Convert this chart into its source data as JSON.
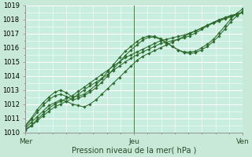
{
  "xlabel": "Pression niveau de la mer( hPa )",
  "bg_color": "#c8e8d8",
  "plot_bg_color": "#c8eee0",
  "grid_major_color": "#ffffff",
  "grid_minor_color": "#ddf5ec",
  "line_color": "#2d6b2d",
  "marker_color": "#2d6b2d",
  "ylim": [
    1010,
    1019
  ],
  "xlim": [
    0,
    48
  ],
  "yticks": [
    1010,
    1011,
    1012,
    1013,
    1014,
    1015,
    1016,
    1017,
    1018,
    1019
  ],
  "xtick_labels": [
    "Mer",
    "Jeu",
    "Ven"
  ],
  "xtick_positions": [
    0,
    24,
    48
  ],
  "vline_positions": [
    24,
    48
  ],
  "series": [
    [
      1010.3,
      1010.7,
      1011.1,
      1011.5,
      1011.9,
      1012.1,
      1012.3,
      1012.2,
      1012.0,
      1011.9,
      1011.8,
      1012.0,
      1012.3,
      1012.7,
      1013.1,
      1013.5,
      1013.9,
      1014.3,
      1014.7,
      1015.1,
      1015.4,
      1015.6,
      1015.8,
      1016.0,
      1016.2,
      1016.4,
      1016.6,
      1016.8,
      1017.0,
      1017.2,
      1017.4,
      1017.6,
      1017.8,
      1018.0,
      1018.15,
      1018.3,
      1018.4,
      1018.5
    ],
    [
      1010.2,
      1010.5,
      1010.9,
      1011.3,
      1011.7,
      1012.0,
      1012.2,
      1012.4,
      1012.6,
      1012.9,
      1013.2,
      1013.5,
      1013.8,
      1014.1,
      1014.4,
      1014.7,
      1015.0,
      1015.3,
      1015.5,
      1015.7,
      1015.9,
      1016.1,
      1016.3,
      1016.5,
      1016.6,
      1016.7,
      1016.8,
      1016.9,
      1017.05,
      1017.2,
      1017.4,
      1017.6,
      1017.8,
      1017.95,
      1018.1,
      1018.25,
      1018.38,
      1018.5
    ],
    [
      1010.15,
      1010.45,
      1010.8,
      1011.15,
      1011.5,
      1011.8,
      1012.0,
      1012.2,
      1012.4,
      1012.7,
      1013.0,
      1013.3,
      1013.55,
      1013.8,
      1014.1,
      1014.4,
      1014.7,
      1015.0,
      1015.25,
      1015.5,
      1015.7,
      1015.9,
      1016.1,
      1016.3,
      1016.4,
      1016.5,
      1016.6,
      1016.7,
      1016.85,
      1017.05,
      1017.3,
      1017.55,
      1017.75,
      1017.9,
      1018.05,
      1018.2,
      1018.35,
      1018.5
    ],
    [
      1010.4,
      1010.9,
      1011.4,
      1011.9,
      1012.3,
      1012.6,
      1012.7,
      1012.55,
      1012.3,
      1012.4,
      1012.6,
      1012.85,
      1013.15,
      1013.55,
      1014.0,
      1014.5,
      1015.0,
      1015.45,
      1015.85,
      1016.2,
      1016.55,
      1016.75,
      1016.75,
      1016.6,
      1016.35,
      1016.1,
      1015.85,
      1015.65,
      1015.6,
      1015.65,
      1015.85,
      1016.1,
      1016.45,
      1016.85,
      1017.35,
      1017.85,
      1018.25,
      1018.6
    ],
    [
      1010.5,
      1011.0,
      1011.6,
      1012.1,
      1012.5,
      1012.85,
      1013.0,
      1012.8,
      1012.5,
      1012.55,
      1012.7,
      1013.0,
      1013.35,
      1013.8,
      1014.3,
      1014.8,
      1015.3,
      1015.75,
      1016.1,
      1016.45,
      1016.7,
      1016.85,
      1016.8,
      1016.65,
      1016.4,
      1016.1,
      1015.85,
      1015.7,
      1015.7,
      1015.75,
      1016.0,
      1016.25,
      1016.6,
      1017.05,
      1017.55,
      1018.05,
      1018.45,
      1018.75
    ]
  ]
}
